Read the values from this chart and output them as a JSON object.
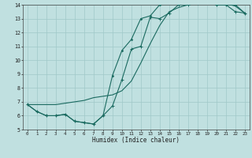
{
  "xlabel": "Humidex (Indice chaleur)",
  "bg_color": "#c0e0e0",
  "grid_color": "#a0c8c8",
  "line_color": "#1a6a60",
  "xlim": [
    -0.5,
    23.5
  ],
  "ylim": [
    5,
    14
  ],
  "xticks": [
    0,
    1,
    2,
    3,
    4,
    5,
    6,
    7,
    8,
    9,
    10,
    11,
    12,
    13,
    14,
    15,
    16,
    17,
    18,
    19,
    20,
    21,
    22,
    23
  ],
  "yticks": [
    5,
    6,
    7,
    8,
    9,
    10,
    11,
    12,
    13,
    14
  ],
  "line1_x": [
    0,
    1,
    2,
    3,
    4,
    5,
    6,
    7,
    8,
    9,
    10,
    11,
    12,
    13,
    14,
    15,
    16,
    17,
    18,
    19,
    20,
    21,
    22,
    23
  ],
  "line1_y": [
    6.8,
    6.3,
    6.0,
    6.0,
    6.1,
    5.6,
    5.5,
    5.4,
    6.0,
    6.7,
    8.6,
    10.8,
    11.0,
    13.1,
    13.0,
    13.4,
    14.0,
    14.0,
    14.1,
    14.2,
    14.0,
    14.0,
    13.5,
    13.4
  ],
  "line2_x": [
    0,
    1,
    2,
    3,
    4,
    5,
    6,
    7,
    8,
    9,
    10,
    11,
    12,
    13,
    14,
    15,
    16,
    17,
    18,
    19,
    20,
    21,
    22,
    23
  ],
  "line2_y": [
    6.8,
    6.3,
    6.0,
    6.0,
    6.1,
    5.6,
    5.5,
    5.4,
    6.0,
    8.9,
    10.7,
    11.5,
    13.0,
    13.2,
    14.0,
    14.1,
    14.2,
    14.2,
    14.1,
    14.2,
    14.0,
    14.0,
    14.0,
    13.4
  ],
  "line3_x": [
    0,
    3,
    4,
    5,
    6,
    7,
    8,
    9,
    10,
    11,
    12,
    13,
    14,
    15,
    16,
    17,
    18,
    19,
    20,
    21,
    22,
    23
  ],
  "line3_y": [
    6.8,
    6.8,
    6.9,
    7.0,
    7.1,
    7.3,
    7.4,
    7.5,
    7.8,
    8.5,
    9.8,
    11.2,
    12.5,
    13.5,
    13.8,
    14.0,
    14.1,
    14.2,
    14.2,
    14.1,
    13.9,
    13.4
  ]
}
